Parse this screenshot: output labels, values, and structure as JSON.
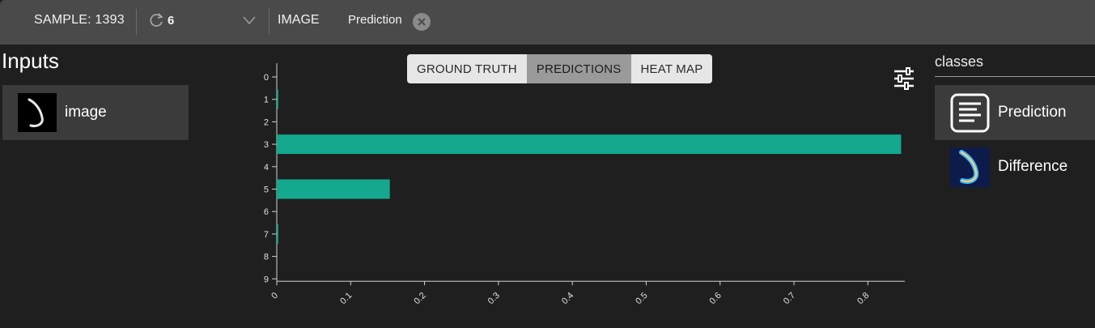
{
  "toolbar": {
    "sample_label": "SAMPLE: 1393",
    "refresh_count": "6",
    "image_label": "IMAGE",
    "prediction_tag": "Prediction"
  },
  "inputs": {
    "title": "Inputs",
    "items": [
      {
        "label": "image"
      }
    ]
  },
  "view_toggle": {
    "options": [
      "GROUND TRUTH",
      "PREDICTIONS",
      "HEAT MAP"
    ],
    "active": "PREDICTIONS"
  },
  "classes_panel": {
    "title": "classes",
    "items": [
      {
        "label": "Prediction",
        "icon": "document-lines-icon",
        "selected": true
      },
      {
        "label": "Difference",
        "icon": "difference-thumbnail",
        "selected": false
      }
    ]
  },
  "colors": {
    "bar": "#14a88f",
    "topbar": "#4a4a4a",
    "background": "#1f1f1f"
  },
  "chart_data": {
    "type": "bar",
    "orientation": "horizontal",
    "categories": [
      "0",
      "1",
      "2",
      "3",
      "4",
      "5",
      "6",
      "7",
      "8",
      "9"
    ],
    "values": [
      0.0,
      0.002,
      0.0,
      0.845,
      0.0,
      0.153,
      0.0,
      0.002,
      0.0,
      0.0
    ],
    "xlim": [
      0,
      0.85
    ],
    "x_ticks": [
      "0",
      "0.1",
      "0.2",
      "0.3",
      "0.4",
      "0.5",
      "0.6",
      "0.7",
      "0.8"
    ],
    "xlabel": "",
    "ylabel": "",
    "title": ""
  }
}
